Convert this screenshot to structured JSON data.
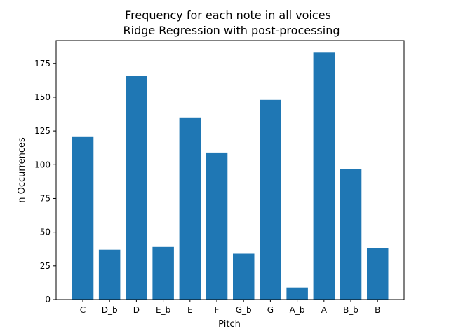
{
  "chart_data": {
    "type": "bar",
    "title": "Frequency for each note in all voices",
    "subtitle": "Ridge Regression with post-processing",
    "xlabel": "Pitch",
    "ylabel": "n Occurrences",
    "categories": [
      "C",
      "D_b",
      "D",
      "E_b",
      "E",
      "F",
      "G_b",
      "G",
      "A_b",
      "A",
      "B_b",
      "B"
    ],
    "values": [
      121,
      37,
      166,
      39,
      135,
      109,
      34,
      148,
      9,
      183,
      97,
      38
    ],
    "ylim": [
      0,
      192
    ],
    "yticks": [
      0,
      25,
      50,
      75,
      100,
      125,
      150,
      175
    ],
    "bar_color": "#1f77b4",
    "grid": false,
    "legend": "none"
  }
}
